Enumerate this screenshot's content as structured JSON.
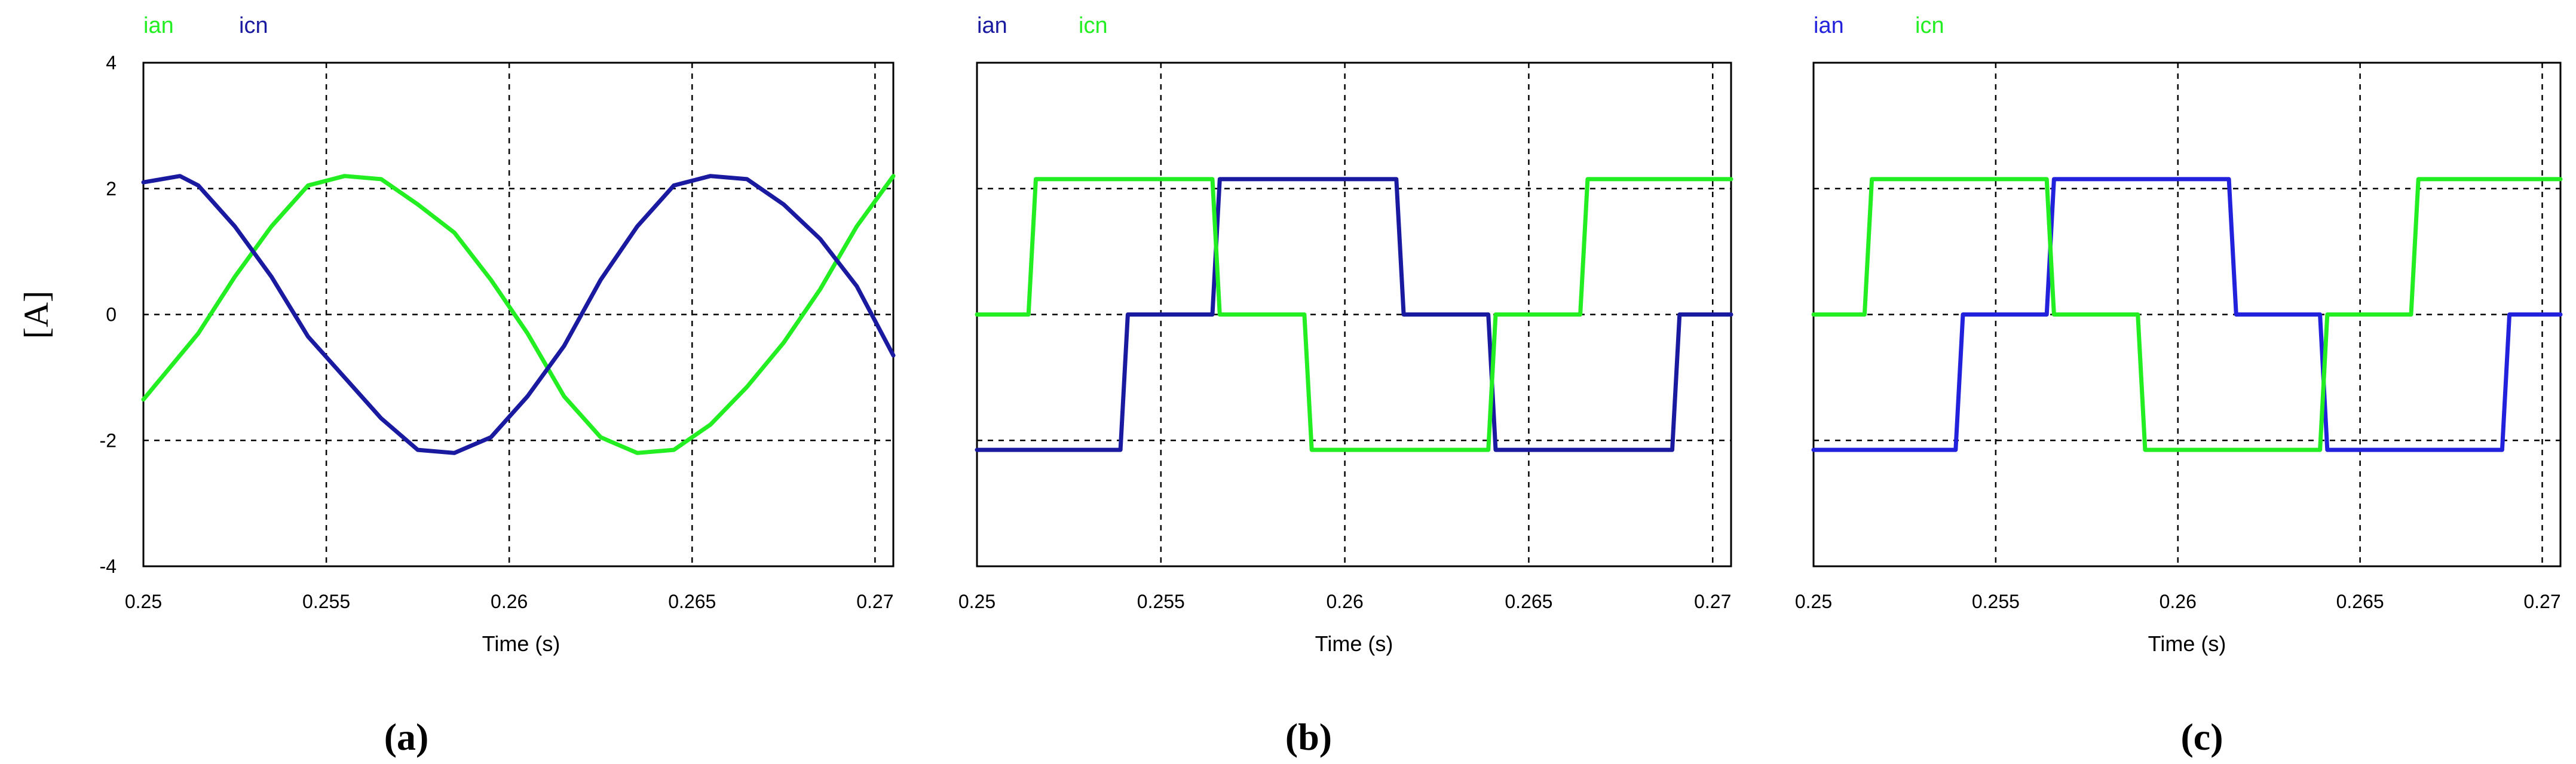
{
  "shared": {
    "ylabel": "[A]"
  },
  "chart_data": [
    {
      "type": "line",
      "caption": "(a)",
      "xlabel": "Time (s)",
      "xlim": [
        0.25,
        0.2705
      ],
      "ylim": [
        -4,
        4
      ],
      "xticks": [
        0.25,
        0.255,
        0.26,
        0.265,
        0.27
      ],
      "xtick_labels": [
        "0.25",
        "0.255",
        "0.26",
        "0.265",
        "0.27"
      ],
      "yticks": [
        -4,
        -2,
        0,
        2,
        4
      ],
      "ytick_labels": [
        "-4",
        "-2",
        "0",
        "2",
        "4"
      ],
      "grid": true,
      "legend_position": "top-left",
      "series": [
        {
          "name": "ian",
          "color": "#22ee22",
          "x": [
            0.25,
            0.2515,
            0.2525,
            0.2535,
            0.2545,
            0.2555,
            0.2565,
            0.2575,
            0.2585,
            0.2595,
            0.2605,
            0.2615,
            0.2625,
            0.2635,
            0.2645,
            0.2655,
            0.2665,
            0.2675,
            0.2685,
            0.2695,
            0.2705
          ],
          "y": [
            -1.35,
            -0.3,
            0.6,
            1.4,
            2.05,
            2.2,
            2.15,
            1.75,
            1.3,
            0.55,
            -0.3,
            -1.3,
            -1.95,
            -2.2,
            -2.15,
            -1.75,
            -1.15,
            -0.45,
            0.4,
            1.4,
            2.2
          ]
        },
        {
          "name": "icn",
          "color": "#1a1aa0",
          "x": [
            0.25,
            0.251,
            0.2515,
            0.2525,
            0.2535,
            0.2545,
            0.2555,
            0.2565,
            0.2575,
            0.2585,
            0.2595,
            0.2605,
            0.2615,
            0.2625,
            0.2635,
            0.2645,
            0.2655,
            0.2665,
            0.2675,
            0.2685,
            0.2695,
            0.2705
          ],
          "y": [
            2.1,
            2.2,
            2.05,
            1.4,
            0.6,
            -0.35,
            -1.0,
            -1.65,
            -2.15,
            -2.2,
            -1.95,
            -1.3,
            -0.5,
            0.55,
            1.4,
            2.05,
            2.2,
            2.15,
            1.75,
            1.2,
            0.45,
            -0.65
          ]
        }
      ]
    },
    {
      "type": "line",
      "caption": "(b)",
      "xlabel": "Time (s)",
      "xlim": [
        0.25,
        0.2705
      ],
      "ylim": [
        -4,
        4
      ],
      "xticks": [
        0.25,
        0.255,
        0.26,
        0.265,
        0.27
      ],
      "xtick_labels": [
        "0.25",
        "0.255",
        "0.26",
        "0.265",
        "0.27"
      ],
      "grid": true,
      "legend_position": "top-left",
      "series": [
        {
          "name": "ian",
          "color": "#1a1aa0",
          "x": [
            0.25,
            0.2539,
            0.2541,
            0.2564,
            0.2566,
            0.2614,
            0.2616,
            0.2639,
            0.2641,
            0.2689,
            0.2691,
            0.2705
          ],
          "y": [
            -2.15,
            -2.15,
            0,
            0,
            2.15,
            2.15,
            0,
            0,
            -2.15,
            -2.15,
            0,
            0
          ]
        },
        {
          "name": "icn",
          "color": "#22ee22",
          "x": [
            0.25,
            0.2514,
            0.2516,
            0.2564,
            0.2566,
            0.2589,
            0.2591,
            0.2639,
            0.2641,
            0.2664,
            0.2666,
            0.2705
          ],
          "y": [
            0,
            0,
            2.15,
            2.15,
            0,
            0,
            -2.15,
            -2.15,
            0,
            0,
            2.15,
            2.15
          ]
        }
      ]
    },
    {
      "type": "line",
      "caption": "(c)",
      "xlabel": "Time (s)",
      "xlim": [
        0.25,
        0.2705
      ],
      "ylim": [
        -4,
        4
      ],
      "xticks": [
        0.25,
        0.255,
        0.26,
        0.265,
        0.27
      ],
      "xtick_labels": [
        "0.25",
        "0.255",
        "0.26",
        "0.265",
        "0.27"
      ],
      "grid": true,
      "legend_position": "top-left",
      "series": [
        {
          "name": "ian",
          "color": "#2222dd",
          "x": [
            0.25,
            0.2539,
            0.2541,
            0.2564,
            0.2566,
            0.2614,
            0.2616,
            0.2639,
            0.2641,
            0.2689,
            0.2691,
            0.2705
          ],
          "y": [
            -2.15,
            -2.15,
            0,
            0,
            2.15,
            2.15,
            0,
            0,
            -2.15,
            -2.15,
            0,
            0
          ]
        },
        {
          "name": "icn",
          "color": "#22ee22",
          "x": [
            0.25,
            0.2514,
            0.2516,
            0.2564,
            0.2566,
            0.2589,
            0.2591,
            0.2639,
            0.2641,
            0.2664,
            0.2666,
            0.2705
          ],
          "y": [
            0,
            0,
            2.15,
            2.15,
            0,
            0,
            -2.15,
            -2.15,
            0,
            0,
            2.15,
            2.15
          ]
        }
      ]
    }
  ]
}
